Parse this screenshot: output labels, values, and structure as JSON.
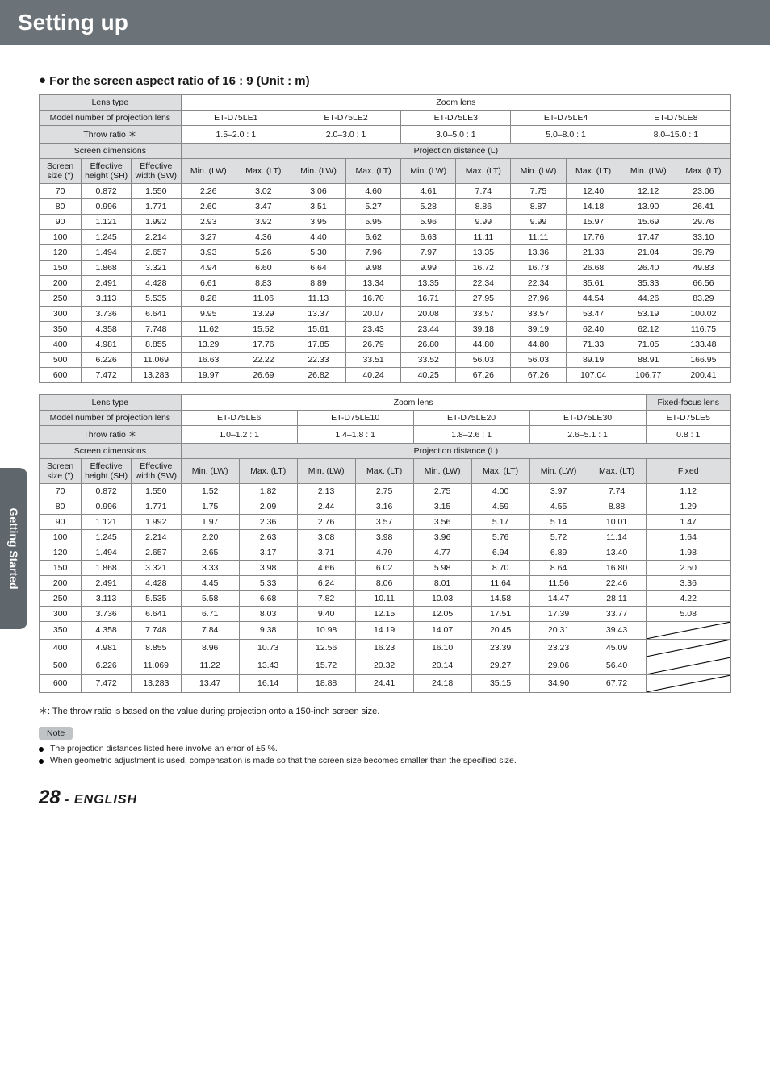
{
  "header_title": "Setting up",
  "side_tab_label": "Getting Started",
  "section_title_bullet": "●",
  "section_title": "For the screen aspect ratio of 16 : 9 (Unit : m)",
  "labels": {
    "lens_type": "Lens type",
    "zoom_lens": "Zoom lens",
    "fixed_focus_lens": "Fixed-focus lens",
    "model_number": "Model number of projection lens",
    "throw_ratio": "Throw ratio ",
    "throw_ratio_star": "＊",
    "screen_dimensions": "Screen dimensions",
    "projection_distance": "Projection distance (L)",
    "screen_size": "Screen size (\")",
    "effective_height": "Effective height (SH)",
    "effective_width": "Effective width (SW)",
    "min_lw": "Min. (LW)",
    "max_lt": "Max. (LT)",
    "fixed": "Fixed"
  },
  "table1": {
    "lenses": [
      "ET-D75LE1",
      "ET-D75LE2",
      "ET-D75LE3",
      "ET-D75LE4",
      "ET-D75LE8"
    ],
    "ratios": [
      "1.5–2.0 : 1",
      "2.0–3.0 : 1",
      "3.0–5.0 : 1",
      "5.0–8.0 : 1",
      "8.0–15.0 : 1"
    ],
    "rows": [
      {
        "sz": "70",
        "sh": "0.872",
        "sw": "1.550",
        "v": [
          "2.26",
          "3.02",
          "3.06",
          "4.60",
          "4.61",
          "7.74",
          "7.75",
          "12.40",
          "12.12",
          "23.06"
        ]
      },
      {
        "sz": "80",
        "sh": "0.996",
        "sw": "1.771",
        "v": [
          "2.60",
          "3.47",
          "3.51",
          "5.27",
          "5.28",
          "8.86",
          "8.87",
          "14.18",
          "13.90",
          "26.41"
        ]
      },
      {
        "sz": "90",
        "sh": "1.121",
        "sw": "1.992",
        "v": [
          "2.93",
          "3.92",
          "3.95",
          "5.95",
          "5.96",
          "9.99",
          "9.99",
          "15.97",
          "15.69",
          "29.76"
        ]
      },
      {
        "sz": "100",
        "sh": "1.245",
        "sw": "2.214",
        "v": [
          "3.27",
          "4.36",
          "4.40",
          "6.62",
          "6.63",
          "11.11",
          "11.11",
          "17.76",
          "17.47",
          "33.10"
        ]
      },
      {
        "sz": "120",
        "sh": "1.494",
        "sw": "2.657",
        "v": [
          "3.93",
          "5.26",
          "5.30",
          "7.96",
          "7.97",
          "13.35",
          "13.36",
          "21.33",
          "21.04",
          "39.79"
        ]
      },
      {
        "sz": "150",
        "sh": "1.868",
        "sw": "3.321",
        "v": [
          "4.94",
          "6.60",
          "6.64",
          "9.98",
          "9.99",
          "16.72",
          "16.73",
          "26.68",
          "26.40",
          "49.83"
        ]
      },
      {
        "sz": "200",
        "sh": "2.491",
        "sw": "4.428",
        "v": [
          "6.61",
          "8.83",
          "8.89",
          "13.34",
          "13.35",
          "22.34",
          "22.34",
          "35.61",
          "35.33",
          "66.56"
        ]
      },
      {
        "sz": "250",
        "sh": "3.113",
        "sw": "5.535",
        "v": [
          "8.28",
          "11.06",
          "11.13",
          "16.70",
          "16.71",
          "27.95",
          "27.96",
          "44.54",
          "44.26",
          "83.29"
        ]
      },
      {
        "sz": "300",
        "sh": "3.736",
        "sw": "6.641",
        "v": [
          "9.95",
          "13.29",
          "13.37",
          "20.07",
          "20.08",
          "33.57",
          "33.57",
          "53.47",
          "53.19",
          "100.02"
        ]
      },
      {
        "sz": "350",
        "sh": "4.358",
        "sw": "7.748",
        "v": [
          "11.62",
          "15.52",
          "15.61",
          "23.43",
          "23.44",
          "39.18",
          "39.19",
          "62.40",
          "62.12",
          "116.75"
        ]
      },
      {
        "sz": "400",
        "sh": "4.981",
        "sw": "8.855",
        "v": [
          "13.29",
          "17.76",
          "17.85",
          "26.79",
          "26.80",
          "44.80",
          "44.80",
          "71.33",
          "71.05",
          "133.48"
        ]
      },
      {
        "sz": "500",
        "sh": "6.226",
        "sw": "11.069",
        "v": [
          "16.63",
          "22.22",
          "22.33",
          "33.51",
          "33.52",
          "56.03",
          "56.03",
          "89.19",
          "88.91",
          "166.95"
        ]
      },
      {
        "sz": "600",
        "sh": "7.472",
        "sw": "13.283",
        "v": [
          "19.97",
          "26.69",
          "26.82",
          "40.24",
          "40.25",
          "67.26",
          "67.26",
          "107.04",
          "106.77",
          "200.41"
        ]
      }
    ]
  },
  "table2": {
    "lenses": [
      "ET-D75LE6",
      "ET-D75LE10",
      "ET-D75LE20",
      "ET-D75LE30",
      "ET-D75LE5"
    ],
    "ratios": [
      "1.0–1.2 : 1",
      "1.4–1.8 : 1",
      "1.8–2.6 : 1",
      "2.6–5.1 : 1",
      "0.8 : 1"
    ],
    "rows": [
      {
        "sz": "70",
        "sh": "0.872",
        "sw": "1.550",
        "v": [
          "1.52",
          "1.82",
          "2.13",
          "2.75",
          "2.75",
          "4.00",
          "3.97",
          "7.74"
        ],
        "f": "1.12"
      },
      {
        "sz": "80",
        "sh": "0.996",
        "sw": "1.771",
        "v": [
          "1.75",
          "2.09",
          "2.44",
          "3.16",
          "3.15",
          "4.59",
          "4.55",
          "8.88"
        ],
        "f": "1.29"
      },
      {
        "sz": "90",
        "sh": "1.121",
        "sw": "1.992",
        "v": [
          "1.97",
          "2.36",
          "2.76",
          "3.57",
          "3.56",
          "5.17",
          "5.14",
          "10.01"
        ],
        "f": "1.47"
      },
      {
        "sz": "100",
        "sh": "1.245",
        "sw": "2.214",
        "v": [
          "2.20",
          "2.63",
          "3.08",
          "3.98",
          "3.96",
          "5.76",
          "5.72",
          "11.14"
        ],
        "f": "1.64"
      },
      {
        "sz": "120",
        "sh": "1.494",
        "sw": "2.657",
        "v": [
          "2.65",
          "3.17",
          "3.71",
          "4.79",
          "4.77",
          "6.94",
          "6.89",
          "13.40"
        ],
        "f": "1.98"
      },
      {
        "sz": "150",
        "sh": "1.868",
        "sw": "3.321",
        "v": [
          "3.33",
          "3.98",
          "4.66",
          "6.02",
          "5.98",
          "8.70",
          "8.64",
          "16.80"
        ],
        "f": "2.50"
      },
      {
        "sz": "200",
        "sh": "2.491",
        "sw": "4.428",
        "v": [
          "4.45",
          "5.33",
          "6.24",
          "8.06",
          "8.01",
          "11.64",
          "11.56",
          "22.46"
        ],
        "f": "3.36"
      },
      {
        "sz": "250",
        "sh": "3.113",
        "sw": "5.535",
        "v": [
          "5.58",
          "6.68",
          "7.82",
          "10.11",
          "10.03",
          "14.58",
          "14.47",
          "28.11"
        ],
        "f": "4.22"
      },
      {
        "sz": "300",
        "sh": "3.736",
        "sw": "6.641",
        "v": [
          "6.71",
          "8.03",
          "9.40",
          "12.15",
          "12.05",
          "17.51",
          "17.39",
          "33.77"
        ],
        "f": "5.08"
      },
      {
        "sz": "350",
        "sh": "4.358",
        "sw": "7.748",
        "v": [
          "7.84",
          "9.38",
          "10.98",
          "14.19",
          "14.07",
          "20.45",
          "20.31",
          "39.43"
        ],
        "f": null
      },
      {
        "sz": "400",
        "sh": "4.981",
        "sw": "8.855",
        "v": [
          "8.96",
          "10.73",
          "12.56",
          "16.23",
          "16.10",
          "23.39",
          "23.23",
          "45.09"
        ],
        "f": null
      },
      {
        "sz": "500",
        "sh": "6.226",
        "sw": "11.069",
        "v": [
          "11.22",
          "13.43",
          "15.72",
          "20.32",
          "20.14",
          "29.27",
          "29.06",
          "56.40"
        ],
        "f": null
      },
      {
        "sz": "600",
        "sh": "7.472",
        "sw": "13.283",
        "v": [
          "13.47",
          "16.14",
          "18.88",
          "24.41",
          "24.18",
          "35.15",
          "34.90",
          "67.72"
        ],
        "f": null
      }
    ]
  },
  "footnote_star": "＊:",
  "footnote": " The throw ratio is based on the value during projection onto a 150-inch screen size.",
  "note_heading": "Note",
  "notes": [
    "The projection distances listed here involve an error of ±5 %.",
    "When geometric adjustment is used, compensation is made so that the screen size becomes smaller than the specified size."
  ],
  "page_number": "28",
  "page_sep": " - ",
  "page_lang": "ENGLISH",
  "colors": {
    "header_bg": "#6b7278",
    "tab_bg": "#5f666c",
    "cell_bg": "#dcdedf",
    "border": "#888888"
  }
}
